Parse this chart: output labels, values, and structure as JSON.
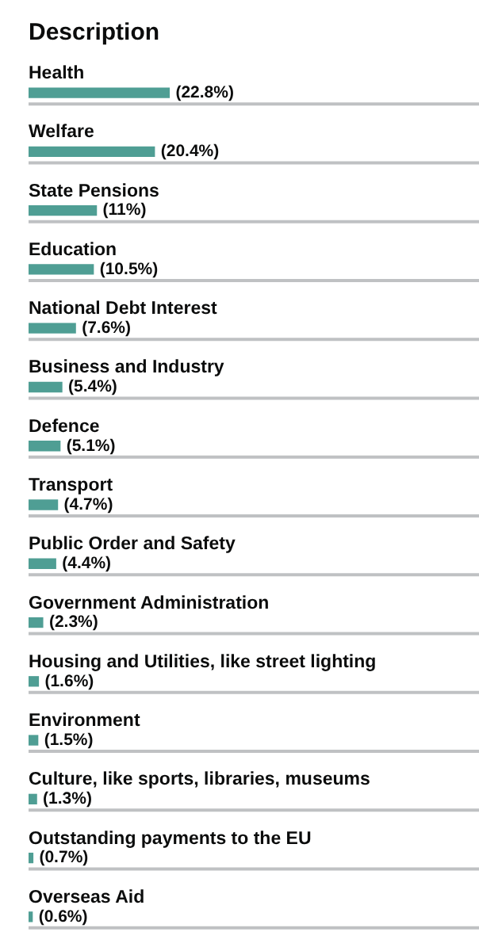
{
  "chart_data": {
    "type": "bar",
    "orientation": "horizontal",
    "title": "Description",
    "categories": [
      "Health",
      "Welfare",
      "State Pensions",
      "Education",
      "National Debt Interest",
      "Business and Industry",
      "Defence",
      "Transport",
      "Public Order and Safety",
      "Government Administration",
      "Housing and Utilities, like street lighting",
      "Environment",
      "Culture, like sports, libraries, museums",
      "Outstanding payments to the EU",
      "Overseas Aid"
    ],
    "values": [
      22.8,
      20.4,
      11,
      10.5,
      7.6,
      5.4,
      5.1,
      4.7,
      4.4,
      2.3,
      1.6,
      1.5,
      1.3,
      0.7,
      0.6
    ],
    "value_labels": [
      "(22.8%)",
      "(20.4%)",
      "(11%)",
      "(10.5%)",
      "(7.6%)",
      "(5.4%)",
      "(5.1%)",
      "(4.7%)",
      "(4.4%)",
      "(2.3%)",
      "(1.6%)",
      "(1.5%)",
      "(1.3%)",
      "(0.7%)",
      "(0.6%)"
    ],
    "color": "#4f9e94",
    "xlim": [
      0,
      73
    ],
    "grid": "y",
    "tick_labels": "y"
  }
}
